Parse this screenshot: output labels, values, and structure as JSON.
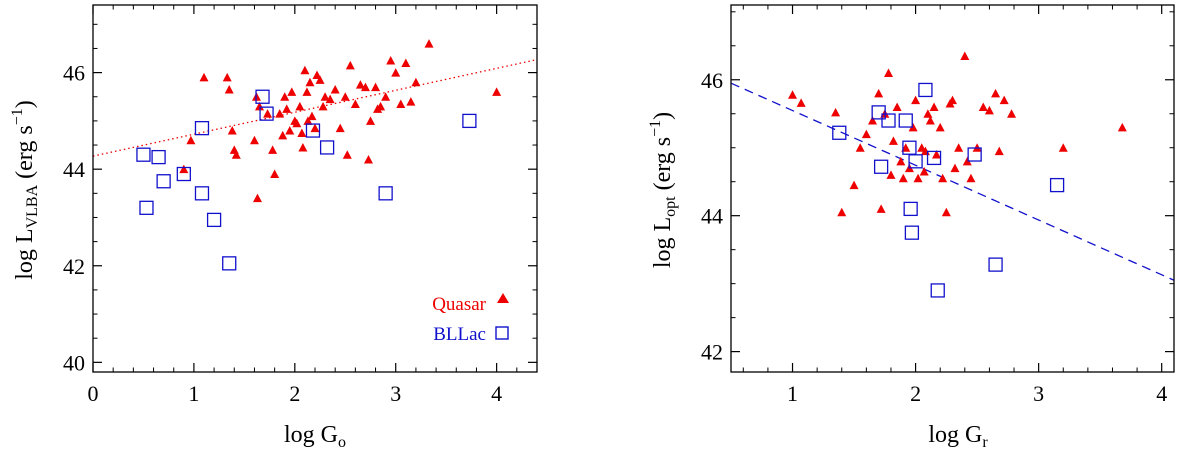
{
  "colors": {
    "quasar": "#ee0000",
    "bllac": "#1111cc",
    "axis": "#000000"
  },
  "chart_data": [
    {
      "type": "scatter",
      "xlabel": {
        "base": "log G",
        "sub": "o"
      },
      "ylabel": {
        "base": "log L",
        "sub": "VLBA",
        "unit": "(erg s",
        "sup": "−1",
        "close": ")"
      },
      "xlim": [
        0,
        4.4
      ],
      "ylim": [
        39.8,
        47.4
      ],
      "xticks": [
        0,
        1,
        2,
        3,
        4
      ],
      "yticks": [
        40,
        42,
        44,
        46
      ],
      "xtick_labels": [
        "0",
        "1",
        "2",
        "3",
        "4"
      ],
      "ytick_labels": [
        "40",
        "42",
        "44",
        "46"
      ],
      "legend": {
        "position": "bottom-right",
        "entries": [
          "Quasar",
          "BLLac"
        ]
      },
      "series": [
        {
          "name": "Quasar",
          "marker": "filled-triangle",
          "points": [
            [
              0.9,
              44.0
            ],
            [
              0.97,
              44.6
            ],
            [
              1.1,
              45.9
            ],
            [
              1.33,
              45.9
            ],
            [
              1.35,
              45.65
            ],
            [
              1.38,
              44.8
            ],
            [
              1.4,
              44.4
            ],
            [
              1.42,
              44.3
            ],
            [
              1.6,
              44.6
            ],
            [
              1.62,
              45.5
            ],
            [
              1.63,
              43.4
            ],
            [
              1.65,
              45.3
            ],
            [
              1.73,
              45.15
            ],
            [
              1.78,
              44.4
            ],
            [
              1.8,
              43.9
            ],
            [
              1.85,
              45.15
            ],
            [
              1.88,
              44.7
            ],
            [
              1.9,
              45.5
            ],
            [
              1.92,
              45.25
            ],
            [
              1.95,
              44.8
            ],
            [
              1.97,
              45.6
            ],
            [
              2.0,
              45.0
            ],
            [
              2.02,
              44.95
            ],
            [
              2.05,
              45.3
            ],
            [
              2.07,
              44.75
            ],
            [
              2.08,
              44.45
            ],
            [
              2.1,
              46.05
            ],
            [
              2.12,
              45.6
            ],
            [
              2.13,
              45.0
            ],
            [
              2.15,
              45.8
            ],
            [
              2.17,
              45.1
            ],
            [
              2.2,
              44.85
            ],
            [
              2.22,
              45.95
            ],
            [
              2.25,
              45.85
            ],
            [
              2.28,
              45.3
            ],
            [
              2.3,
              45.5
            ],
            [
              2.35,
              45.45
            ],
            [
              2.4,
              45.65
            ],
            [
              2.45,
              44.85
            ],
            [
              2.5,
              45.5
            ],
            [
              2.52,
              44.3
            ],
            [
              2.55,
              46.15
            ],
            [
              2.6,
              45.35
            ],
            [
              2.65,
              45.75
            ],
            [
              2.7,
              45.7
            ],
            [
              2.73,
              44.2
            ],
            [
              2.75,
              45.0
            ],
            [
              2.8,
              45.7
            ],
            [
              2.82,
              45.25
            ],
            [
              2.85,
              45.3
            ],
            [
              2.9,
              45.5
            ],
            [
              2.95,
              46.25
            ],
            [
              3.0,
              46.0
            ],
            [
              3.05,
              45.35
            ],
            [
              3.1,
              46.2
            ],
            [
              3.15,
              45.4
            ],
            [
              3.2,
              45.8
            ],
            [
              3.33,
              46.6
            ],
            [
              4.0,
              45.6
            ]
          ]
        },
        {
          "name": "BLLac",
          "marker": "open-square",
          "points": [
            [
              0.5,
              44.3
            ],
            [
              0.53,
              43.2
            ],
            [
              0.65,
              44.25
            ],
            [
              0.7,
              43.75
            ],
            [
              0.9,
              43.9
            ],
            [
              1.08,
              44.85
            ],
            [
              1.08,
              43.5
            ],
            [
              1.2,
              42.95
            ],
            [
              1.35,
              42.05
            ],
            [
              1.68,
              45.5
            ],
            [
              1.72,
              45.15
            ],
            [
              2.18,
              44.8
            ],
            [
              2.32,
              44.45
            ],
            [
              2.9,
              43.5
            ],
            [
              3.73,
              45.0
            ]
          ]
        }
      ],
      "fit_line": {
        "style": "dotted",
        "color": "#ee0000",
        "from": [
          0,
          44.27
        ],
        "to": [
          4.4,
          46.27
        ]
      }
    },
    {
      "type": "scatter",
      "xlabel": {
        "base": "log G",
        "sub": "r"
      },
      "ylabel": {
        "base": "log L",
        "sub": "opt",
        "unit": "(erg s",
        "sup": "−1",
        "close": ")"
      },
      "xlim": [
        0.5,
        4.1
      ],
      "ylim": [
        41.7,
        47.1
      ],
      "xticks": [
        1,
        2,
        3,
        4
      ],
      "yticks": [
        42,
        44,
        46
      ],
      "xtick_labels": [
        "1",
        "2",
        "3",
        "4"
      ],
      "ytick_labels": [
        "42",
        "44",
        "46"
      ],
      "series": [
        {
          "name": "Quasar",
          "marker": "filled-triangle",
          "points": [
            [
              1.0,
              45.78
            ],
            [
              1.07,
              45.66
            ],
            [
              1.35,
              45.52
            ],
            [
              1.4,
              44.05
            ],
            [
              1.5,
              44.45
            ],
            [
              1.55,
              45.0
            ],
            [
              1.6,
              45.2
            ],
            [
              1.65,
              45.4
            ],
            [
              1.7,
              45.8
            ],
            [
              1.72,
              44.1
            ],
            [
              1.75,
              45.5
            ],
            [
              1.78,
              46.1
            ],
            [
              1.8,
              44.6
            ],
            [
              1.82,
              45.1
            ],
            [
              1.85,
              45.6
            ],
            [
              1.88,
              44.8
            ],
            [
              1.9,
              44.55
            ],
            [
              1.92,
              45.0
            ],
            [
              1.95,
              44.7
            ],
            [
              1.98,
              45.3
            ],
            [
              2.0,
              45.7
            ],
            [
              2.02,
              44.55
            ],
            [
              2.05,
              45.0
            ],
            [
              2.07,
              44.65
            ],
            [
              2.08,
              44.95
            ],
            [
              2.1,
              45.5
            ],
            [
              2.12,
              45.4
            ],
            [
              2.15,
              45.6
            ],
            [
              2.17,
              44.9
            ],
            [
              2.2,
              45.3
            ],
            [
              2.22,
              44.55
            ],
            [
              2.25,
              44.05
            ],
            [
              2.28,
              45.65
            ],
            [
              2.3,
              45.7
            ],
            [
              2.32,
              44.7
            ],
            [
              2.35,
              45.0
            ],
            [
              2.4,
              46.35
            ],
            [
              2.42,
              44.8
            ],
            [
              2.45,
              44.55
            ],
            [
              2.5,
              45.0
            ],
            [
              2.55,
              45.6
            ],
            [
              2.6,
              45.55
            ],
            [
              2.65,
              45.8
            ],
            [
              2.68,
              44.95
            ],
            [
              2.72,
              45.7
            ],
            [
              2.78,
              45.5
            ],
            [
              3.2,
              45.0
            ],
            [
              3.68,
              45.3
            ]
          ]
        },
        {
          "name": "BLLac",
          "marker": "open-square",
          "points": [
            [
              1.38,
              45.22
            ],
            [
              1.7,
              45.52
            ],
            [
              1.72,
              44.72
            ],
            [
              1.78,
              45.4
            ],
            [
              1.92,
              45.4
            ],
            [
              1.95,
              45.0
            ],
            [
              1.96,
              44.1
            ],
            [
              1.97,
              43.75
            ],
            [
              2.0,
              44.8
            ],
            [
              2.08,
              45.85
            ],
            [
              2.15,
              44.85
            ],
            [
              2.18,
              42.9
            ],
            [
              2.48,
              44.9
            ],
            [
              2.65,
              43.28
            ],
            [
              3.15,
              44.45
            ]
          ]
        }
      ],
      "fit_line": {
        "style": "dashed",
        "color": "#1111cc",
        "from": [
          0.5,
          45.95
        ],
        "to": [
          4.1,
          43.05
        ]
      }
    }
  ]
}
